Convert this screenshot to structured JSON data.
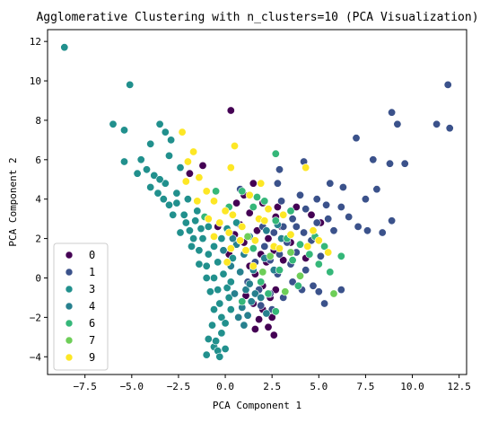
{
  "chart_data": {
    "type": "scatter",
    "title": "Agglomerative Clustering with n_clusters=10 (PCA Visualization)",
    "xlabel": "PCA Component 1",
    "ylabel": "PCA Component 2",
    "xlim": [
      -9.5,
      12.9
    ],
    "ylim": [
      -4.9,
      12.6
    ],
    "xticks": [
      -7.5,
      -5.0,
      -2.5,
      0.0,
      2.5,
      5.0,
      7.5,
      10.0,
      12.5
    ],
    "xtick_labels": [
      "−7.5",
      "−5.0",
      "−2.5",
      "0.0",
      "2.5",
      "5.0",
      "7.5",
      "10.0",
      "12.5"
    ],
    "yticks": [
      -4,
      -2,
      0,
      2,
      4,
      6,
      8,
      10,
      12
    ],
    "ytick_labels": [
      "−4",
      "−2",
      "0",
      "2",
      "4",
      "6",
      "8",
      "10",
      "12"
    ],
    "grid": false,
    "legend": {
      "placement": "lower-left"
    },
    "series": [
      {
        "name": "0",
        "color": "#440154",
        "points": [
          [
            0.3,
            8.5
          ],
          [
            -1.2,
            5.7
          ],
          [
            -1.9,
            5.3
          ],
          [
            1.5,
            4.8
          ],
          [
            1.0,
            4.2
          ],
          [
            0.6,
            3.8
          ],
          [
            2.7,
            3.1
          ],
          [
            2.0,
            3.8
          ],
          [
            1.3,
            3.3
          ],
          [
            0.8,
            2.7
          ],
          [
            1.7,
            2.4
          ],
          [
            2.3,
            2.0
          ],
          [
            1.0,
            1.8
          ],
          [
            1.9,
            1.2
          ],
          [
            2.6,
            1.4
          ],
          [
            2.2,
            0.8
          ],
          [
            1.6,
            0.2
          ],
          [
            2.0,
            -0.4
          ],
          [
            2.4,
            -1.0
          ],
          [
            2.0,
            -1.6
          ],
          [
            2.5,
            -2.0
          ],
          [
            2.3,
            -2.5
          ],
          [
            1.8,
            -2.1
          ],
          [
            1.6,
            -2.6
          ],
          [
            2.6,
            -2.9
          ],
          [
            0.5,
            2.2
          ],
          [
            1.3,
            0.6
          ],
          [
            3.0,
            2.6
          ],
          [
            3.5,
            1.8
          ],
          [
            2.8,
            3.6
          ],
          [
            3.8,
            3.6
          ],
          [
            4.6,
            3.2
          ],
          [
            5.1,
            2.8
          ],
          [
            0.2,
            1.2
          ],
          [
            -0.4,
            2.6
          ],
          [
            3.1,
            0.9
          ],
          [
            1.1,
            -0.9
          ],
          [
            2.7,
            -0.6
          ],
          [
            4.3,
            1.0
          ],
          [
            1.5,
            -1.3
          ]
        ]
      },
      {
        "name": "1",
        "color": "#3b528b",
        "points": [
          [
            11.9,
            9.8
          ],
          [
            8.9,
            8.4
          ],
          [
            9.2,
            7.8
          ],
          [
            11.3,
            7.8
          ],
          [
            12.0,
            7.6
          ],
          [
            7.0,
            7.1
          ],
          [
            7.9,
            6.0
          ],
          [
            8.8,
            5.8
          ],
          [
            9.6,
            5.8
          ],
          [
            4.2,
            5.9
          ],
          [
            2.9,
            5.5
          ],
          [
            5.6,
            4.8
          ],
          [
            6.3,
            4.6
          ],
          [
            7.5,
            4.0
          ],
          [
            8.1,
            4.5
          ],
          [
            0.8,
            4.5
          ],
          [
            2.8,
            4.8
          ],
          [
            4.0,
            4.2
          ],
          [
            4.9,
            4.0
          ],
          [
            5.4,
            3.7
          ],
          [
            6.2,
            3.6
          ],
          [
            6.6,
            3.1
          ],
          [
            7.1,
            2.6
          ],
          [
            7.6,
            2.4
          ],
          [
            8.4,
            2.3
          ],
          [
            8.9,
            2.9
          ],
          [
            5.5,
            3.0
          ],
          [
            3.0,
            3.9
          ],
          [
            4.3,
            3.5
          ],
          [
            3.6,
            3.0
          ],
          [
            4.9,
            2.8
          ],
          [
            3.1,
            2.6
          ],
          [
            4.2,
            2.3
          ],
          [
            5.8,
            2.4
          ],
          [
            2.6,
            2.3
          ],
          [
            3.3,
            1.8
          ],
          [
            4.6,
            1.9
          ],
          [
            2.1,
            1.6
          ],
          [
            2.9,
            1.2
          ],
          [
            3.8,
            1.3
          ],
          [
            5.1,
            1.1
          ],
          [
            2.4,
            0.9
          ],
          [
            3.5,
            0.7
          ],
          [
            4.3,
            0.4
          ],
          [
            2.8,
            0.2
          ],
          [
            3.6,
            -0.2
          ],
          [
            4.7,
            -0.4
          ],
          [
            1.8,
            -0.6
          ],
          [
            2.4,
            -0.8
          ],
          [
            3.1,
            -1.0
          ],
          [
            5.0,
            -0.7
          ],
          [
            2.5,
            -1.6
          ],
          [
            1.9,
            -1.4
          ],
          [
            6.2,
            -0.6
          ],
          [
            5.3,
            -1.3
          ],
          [
            1.2,
            -0.2
          ],
          [
            1.6,
            0.8
          ],
          [
            2.0,
            2.6
          ],
          [
            3.8,
            2.6
          ],
          [
            4.1,
            -0.6
          ]
        ]
      },
      {
        "name": "3",
        "color": "#21908d",
        "points": [
          [
            -8.6,
            11.7
          ],
          [
            -5.1,
            9.8
          ],
          [
            -6.0,
            7.8
          ],
          [
            -5.4,
            7.5
          ],
          [
            -3.5,
            7.8
          ],
          [
            -3.2,
            7.4
          ],
          [
            -2.9,
            7.0
          ],
          [
            -4.0,
            6.8
          ],
          [
            -4.5,
            6.0
          ],
          [
            -3.0,
            6.2
          ],
          [
            -2.4,
            5.6
          ],
          [
            -5.4,
            5.9
          ],
          [
            -4.7,
            5.3
          ],
          [
            -3.8,
            5.2
          ],
          [
            -3.2,
            4.8
          ],
          [
            -2.6,
            4.3
          ],
          [
            -3.6,
            4.3
          ],
          [
            -2.0,
            4.0
          ],
          [
            -4.0,
            4.6
          ],
          [
            -3.0,
            3.7
          ],
          [
            -2.2,
            3.2
          ],
          [
            -1.6,
            2.9
          ],
          [
            -2.8,
            3.2
          ],
          [
            -1.9,
            2.4
          ],
          [
            -1.2,
            2.0
          ],
          [
            -2.4,
            2.3
          ],
          [
            -1.4,
            1.4
          ],
          [
            -0.9,
            1.2
          ],
          [
            -1.8,
            1.6
          ],
          [
            -1.0,
            0.6
          ],
          [
            -0.4,
            0.8
          ],
          [
            -1.4,
            0.7
          ],
          [
            -0.6,
            0.0
          ],
          [
            -0.1,
            0.2
          ],
          [
            -1.0,
            0.0
          ],
          [
            -0.4,
            -0.6
          ],
          [
            0.1,
            -0.5
          ],
          [
            -0.8,
            -0.7
          ],
          [
            -0.3,
            -1.3
          ],
          [
            0.2,
            -1.0
          ],
          [
            -0.6,
            -1.6
          ],
          [
            -0.2,
            -2.0
          ],
          [
            0.3,
            -1.6
          ],
          [
            -0.7,
            -2.4
          ],
          [
            -0.2,
            -2.8
          ],
          [
            -0.9,
            -3.1
          ],
          [
            -0.6,
            -3.5
          ],
          [
            -0.4,
            -3.7
          ],
          [
            -1.0,
            -3.9
          ],
          [
            -0.3,
            -4.0
          ],
          [
            0.0,
            -3.6
          ],
          [
            -0.5,
            -3.2
          ],
          [
            -3.3,
            4.0
          ],
          [
            -2.6,
            3.8
          ],
          [
            -1.5,
            3.4
          ],
          [
            -0.9,
            2.6
          ],
          [
            -0.2,
            2.0
          ],
          [
            -0.6,
            1.6
          ],
          [
            0.4,
            1.0
          ],
          [
            0.1,
            2.5
          ],
          [
            0.6,
            2.8
          ],
          [
            0.3,
            -0.2
          ],
          [
            -1.7,
            2.0
          ],
          [
            -3.5,
            5.0
          ],
          [
            -4.2,
            5.5
          ],
          [
            -2.1,
            2.8
          ],
          [
            -1.3,
            2.5
          ],
          [
            0.0,
            -2.3
          ]
        ]
      },
      {
        "name": "4",
        "color": "#27808e",
        "points": [
          [
            1.1,
            -0.6
          ],
          [
            1.4,
            -1.2
          ],
          [
            0.9,
            -1.5
          ],
          [
            1.6,
            -0.8
          ],
          [
            1.2,
            -1.9
          ],
          [
            1.0,
            -2.4
          ],
          [
            0.7,
            -2.0
          ],
          [
            1.3,
            -0.3
          ],
          [
            0.8,
            0.3
          ],
          [
            0.5,
            -0.8
          ],
          [
            1.5,
            0.4
          ],
          [
            1.0,
            1.2
          ],
          [
            0.6,
            1.7
          ],
          [
            1.3,
            2.1
          ],
          [
            2.2,
            2.4
          ],
          [
            2.8,
            2.7
          ],
          [
            3.0,
            2.0
          ],
          [
            2.1,
            1.0
          ],
          [
            2.6,
            0.4
          ],
          [
            0.3,
            0.6
          ],
          [
            -0.1,
            1.4
          ],
          [
            0.4,
            2.0
          ],
          [
            1.9,
            -1.0
          ],
          [
            2.2,
            -1.8
          ]
        ]
      },
      {
        "name": "6",
        "color": "#35b779",
        "points": [
          [
            2.7,
            6.3
          ],
          [
            0.9,
            4.4
          ],
          [
            1.7,
            4.1
          ],
          [
            2.1,
            3.9
          ],
          [
            3.5,
            3.4
          ],
          [
            1.5,
            3.6
          ],
          [
            2.7,
            2.9
          ],
          [
            3.3,
            2.0
          ],
          [
            4.0,
            1.7
          ],
          [
            4.5,
            1.2
          ],
          [
            5.3,
            1.6
          ],
          [
            6.2,
            1.1
          ],
          [
            5.0,
            0.7
          ],
          [
            3.6,
            0.9
          ],
          [
            2.9,
            0.4
          ],
          [
            1.9,
            -0.2
          ],
          [
            2.3,
            -0.8
          ],
          [
            2.7,
            -1.7
          ],
          [
            0.9,
            -1.2
          ],
          [
            -0.5,
            4.4
          ],
          [
            0.2,
            3.6
          ],
          [
            4.8,
            2.1
          ],
          [
            3.9,
            -0.4
          ],
          [
            5.6,
            0.3
          ],
          [
            1.5,
            1.5
          ],
          [
            -1.1,
            3.1
          ]
        ]
      },
      {
        "name": "7",
        "color": "#6ece58",
        "points": [
          [
            5.8,
            -0.8
          ],
          [
            3.5,
            1.3
          ],
          [
            2.4,
            1.1
          ],
          [
            1.2,
            2.1
          ],
          [
            4.0,
            0.1
          ],
          [
            2.0,
            0.3
          ],
          [
            3.2,
            -0.7
          ]
        ]
      },
      {
        "name": "9",
        "color": "#fde725",
        "points": [
          [
            -2.3,
            7.4
          ],
          [
            -1.7,
            6.4
          ],
          [
            0.5,
            6.7
          ],
          [
            -2.0,
            5.9
          ],
          [
            -1.4,
            5.1
          ],
          [
            -2.1,
            4.9
          ],
          [
            0.3,
            5.6
          ],
          [
            4.3,
            5.6
          ],
          [
            1.9,
            4.8
          ],
          [
            -1.0,
            4.4
          ],
          [
            -0.6,
            3.9
          ],
          [
            0.0,
            3.4
          ],
          [
            -0.9,
            3.0
          ],
          [
            -0.3,
            2.8
          ],
          [
            0.4,
            3.2
          ],
          [
            -0.6,
            2.1
          ],
          [
            0.2,
            2.3
          ],
          [
            0.9,
            2.6
          ],
          [
            0.3,
            1.5
          ],
          [
            0.8,
            1.9
          ],
          [
            1.1,
            1.4
          ],
          [
            1.6,
            1.9
          ],
          [
            2.6,
            1.6
          ],
          [
            3.1,
            3.2
          ],
          [
            3.5,
            2.2
          ],
          [
            2.3,
            3.5
          ],
          [
            4.7,
            2.4
          ],
          [
            5.0,
            1.9
          ],
          [
            4.4,
            1.6
          ],
          [
            1.5,
            0.6
          ],
          [
            2.9,
            1.5
          ],
          [
            0.1,
            0.8
          ],
          [
            -1.5,
            3.9
          ],
          [
            1.8,
            3.0
          ],
          [
            5.5,
            1.3
          ],
          [
            2.1,
            2.9
          ],
          [
            1.3,
            4.2
          ]
        ]
      }
    ]
  }
}
